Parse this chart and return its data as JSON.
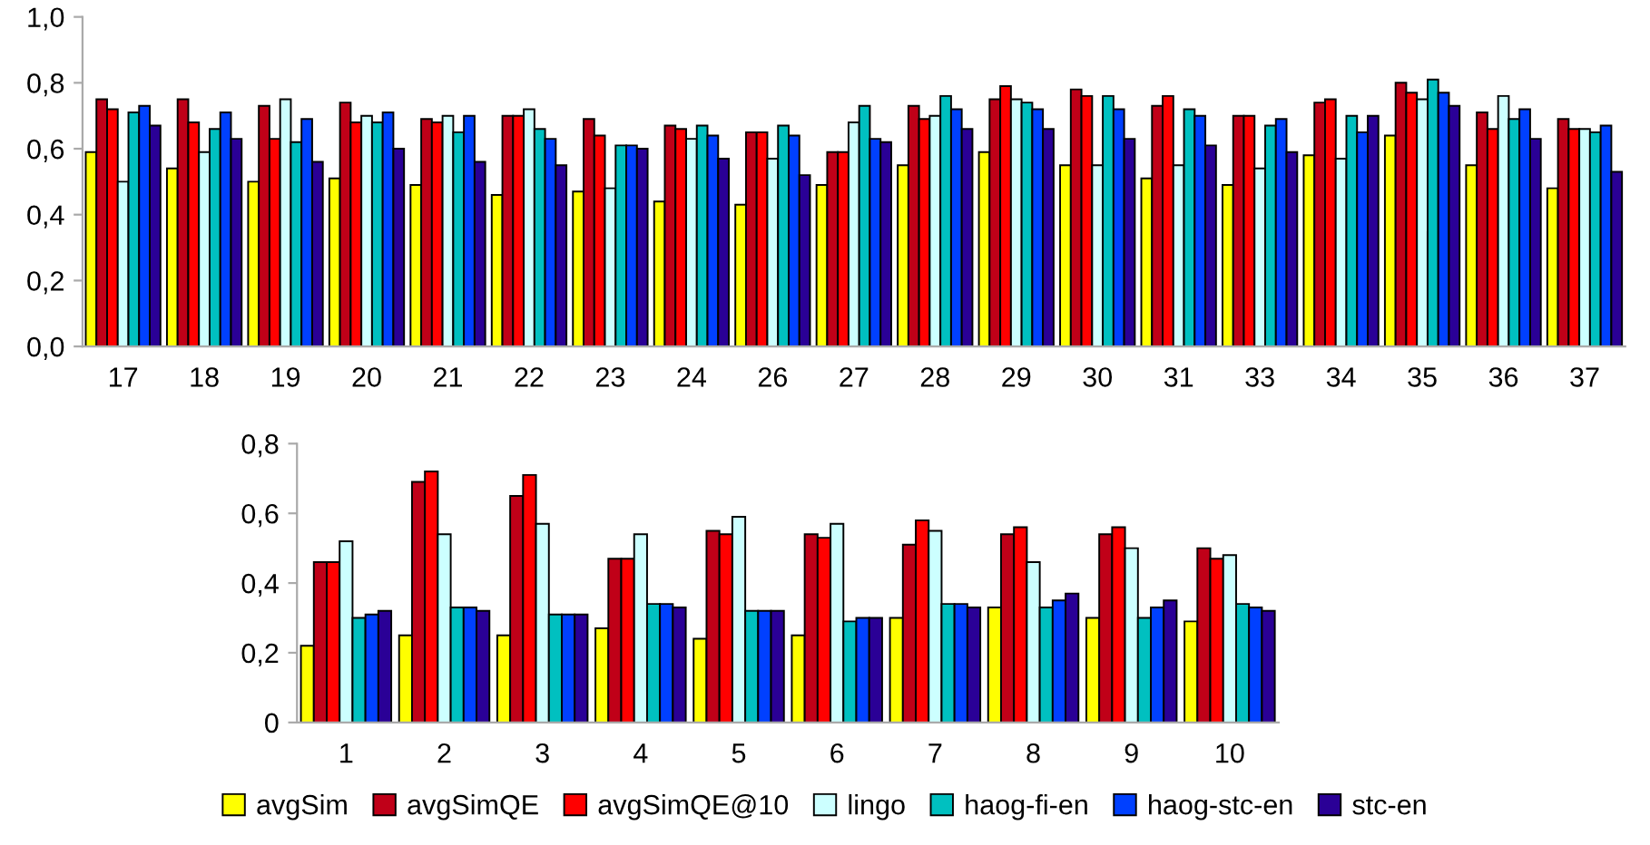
{
  "chart_data": [
    {
      "type": "bar",
      "categories": [
        "17",
        "18",
        "19",
        "20",
        "21",
        "22",
        "23",
        "24",
        "26",
        "27",
        "28",
        "29",
        "30",
        "31",
        "33",
        "34",
        "35",
        "36",
        "37"
      ],
      "ylim": [
        0,
        1.0
      ],
      "yticks": [
        {
          "value": 0,
          "label": "0,0"
        },
        {
          "value": 0.2,
          "label": "0,2"
        },
        {
          "value": 0.4,
          "label": "0,4"
        },
        {
          "value": 0.6,
          "label": "0,6"
        },
        {
          "value": 0.8,
          "label": "0,8"
        },
        {
          "value": 1.0,
          "label": "1,0"
        }
      ],
      "grid": false,
      "legend": "bottom",
      "series": [
        {
          "name": "avgSim",
          "color": "#ffff00",
          "values": [
            0.59,
            0.54,
            0.5,
            0.51,
            0.49,
            0.46,
            0.47,
            0.44,
            0.43,
            0.49,
            0.55,
            0.59,
            0.55,
            0.51,
            0.49,
            0.58,
            0.64,
            0.55,
            0.48
          ]
        },
        {
          "name": "avgSimQE",
          "color": "#c00018",
          "values": [
            0.75,
            0.75,
            0.73,
            0.74,
            0.69,
            0.7,
            0.69,
            0.67,
            0.65,
            0.59,
            0.73,
            0.75,
            0.78,
            0.73,
            0.7,
            0.74,
            0.8,
            0.71,
            0.69
          ]
        },
        {
          "name": "avgSimQE@10",
          "color": "#ff0000",
          "values": [
            0.72,
            0.68,
            0.63,
            0.68,
            0.68,
            0.7,
            0.64,
            0.66,
            0.65,
            0.59,
            0.69,
            0.79,
            0.76,
            0.76,
            0.7,
            0.75,
            0.77,
            0.66,
            0.66
          ]
        },
        {
          "name": "lingo",
          "color": "#ccffff",
          "values": [
            0.5,
            0.59,
            0.75,
            0.7,
            0.7,
            0.72,
            0.48,
            0.63,
            0.57,
            0.68,
            0.7,
            0.75,
            0.55,
            0.55,
            0.54,
            0.57,
            0.75,
            0.76,
            0.66
          ]
        },
        {
          "name": "haog-fi-en",
          "color": "#00c0c0",
          "values": [
            0.71,
            0.66,
            0.62,
            0.68,
            0.65,
            0.66,
            0.61,
            0.67,
            0.67,
            0.73,
            0.76,
            0.74,
            0.76,
            0.72,
            0.67,
            0.7,
            0.81,
            0.69,
            0.65
          ]
        },
        {
          "name": "haog-stc-en",
          "color": "#0040ff",
          "values": [
            0.73,
            0.71,
            0.69,
            0.71,
            0.7,
            0.63,
            0.61,
            0.64,
            0.64,
            0.63,
            0.72,
            0.72,
            0.72,
            0.7,
            0.69,
            0.65,
            0.77,
            0.72,
            0.67
          ]
        },
        {
          "name": "stc-en",
          "color": "#2a0096",
          "values": [
            0.67,
            0.63,
            0.56,
            0.6,
            0.56,
            0.55,
            0.6,
            0.57,
            0.52,
            0.62,
            0.66,
            0.66,
            0.63,
            0.61,
            0.59,
            0.7,
            0.73,
            0.63,
            0.53
          ]
        }
      ]
    },
    {
      "type": "bar",
      "categories": [
        "1",
        "2",
        "3",
        "4",
        "5",
        "6",
        "7",
        "8",
        "9",
        "10"
      ],
      "ylim": [
        0,
        0.8
      ],
      "yticks": [
        0,
        {
          "value": 0.2,
          "label": "0,2"
        },
        {
          "value": 0.4,
          "label": "0,4"
        },
        {
          "value": 0.6,
          "label": "0,6"
        },
        {
          "value": 0.8,
          "label": "0,8"
        }
      ],
      "grid": false,
      "series": [
        {
          "color": "#ffff00",
          "values": [
            0.22,
            0.25,
            0.25,
            0.27,
            0.24,
            0.25,
            0.3,
            0.33,
            0.3,
            0.29
          ]
        },
        {
          "color": "#c00018",
          "values": [
            0.46,
            0.69,
            0.65,
            0.47,
            0.55,
            0.54,
            0.51,
            0.54,
            0.54,
            0.5
          ]
        },
        {
          "color": "#ff0000",
          "values": [
            0.46,
            0.72,
            0.71,
            0.47,
            0.54,
            0.53,
            0.58,
            0.56,
            0.56,
            0.47
          ]
        },
        {
          "color": "#ccffff",
          "values": [
            0.52,
            0.54,
            0.57,
            0.54,
            0.59,
            0.57,
            0.55,
            0.46,
            0.5,
            0.48
          ]
        },
        {
          "color": "#00c0c0",
          "values": [
            0.3,
            0.33,
            0.31,
            0.34,
            0.32,
            0.29,
            0.34,
            0.33,
            0.3,
            0.34
          ]
        },
        {
          "color": "#0040ff",
          "values": [
            0.31,
            0.33,
            0.31,
            0.34,
            0.32,
            0.3,
            0.34,
            0.35,
            0.33,
            0.33
          ]
        },
        {
          "color": "#2a0096",
          "values": [
            0.32,
            0.32,
            0.31,
            0.33,
            0.32,
            0.3,
            0.33,
            0.37,
            0.35,
            0.32
          ]
        }
      ]
    }
  ]
}
